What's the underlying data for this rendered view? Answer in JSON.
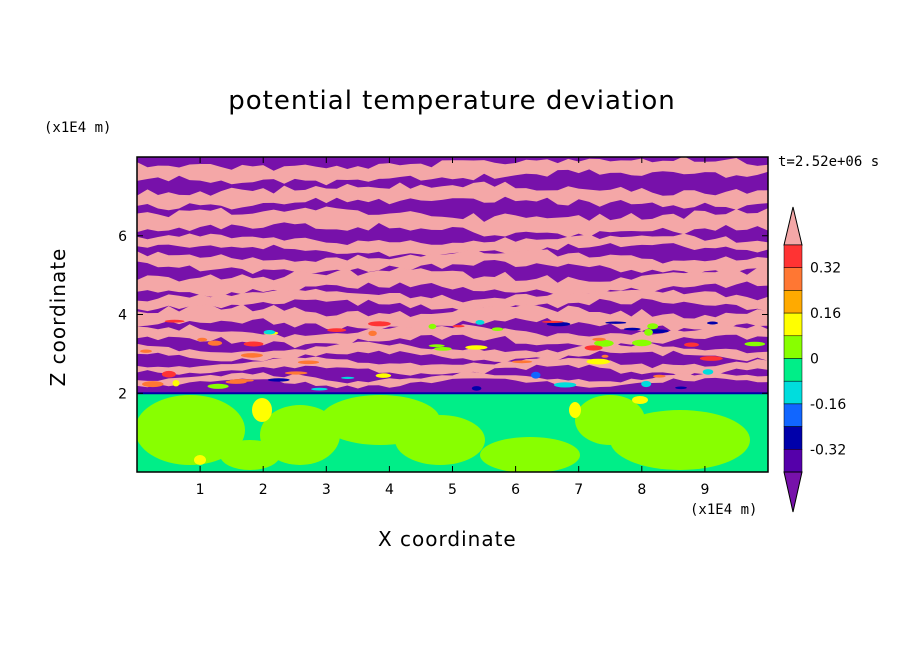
{
  "chart_data": {
    "type": "heatmap",
    "title": "potential temperature deviation",
    "xlabel": "X coordinate",
    "ylabel": "Z coordinate",
    "x_unit": "(x1E4 m)",
    "y_unit": "(x1E4 m)",
    "time_label": "t=2.52e+06 s",
    "xlim": [
      0,
      10
    ],
    "ylim": [
      0,
      8
    ],
    "x_ticks": [
      "1",
      "2",
      "3",
      "4",
      "5",
      "6",
      "7",
      "8",
      "9"
    ],
    "y_ticks": [
      "2",
      "4",
      "6"
    ],
    "colorbar": {
      "levels": [
        "0.32",
        "0.16",
        "0",
        "-0.16",
        "-0.32"
      ],
      "colors": [
        "#f4a7a7",
        "#ff3333",
        "#ff7733",
        "#ffaa00",
        "#ffff00",
        "#88ff00",
        "#00ee88",
        "#00dddd",
        "#1166ff",
        "#0000aa",
        "#5500aa",
        "#7711aa"
      ]
    },
    "layers": [
      {
        "z_range": [
          2,
          8
        ],
        "description_colors": [
          "#7711aa",
          "#f4a7a7"
        ]
      },
      {
        "z_range": [
          0,
          2
        ],
        "description_colors": [
          "#00ee88",
          "#88ff00"
        ]
      }
    ]
  }
}
